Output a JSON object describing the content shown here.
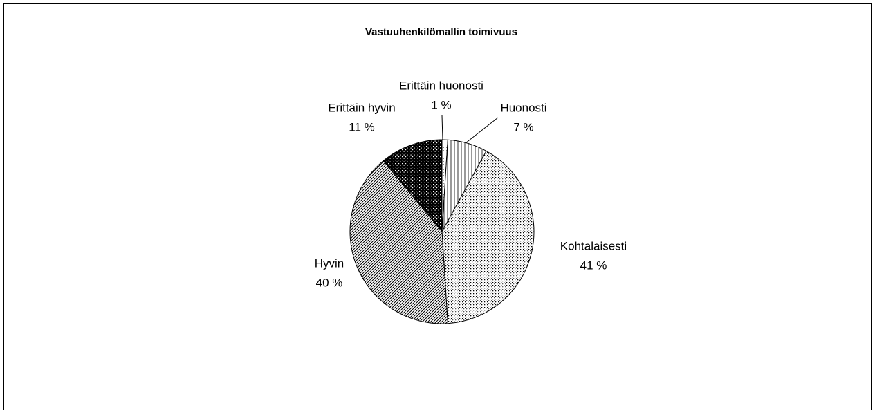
{
  "chart_data": {
    "type": "pie",
    "title": "Vastuuhenkilömallin toimivuus",
    "categories": [
      "Erittäin huonosti",
      "Huonosti",
      "Kohtalaisesti",
      "Hyvin",
      "Erittäin hyvin"
    ],
    "values": [
      1,
      7,
      41,
      40,
      11
    ],
    "value_labels": [
      "1 %",
      "7 %",
      "41 %",
      "40 %",
      "11 %"
    ]
  }
}
